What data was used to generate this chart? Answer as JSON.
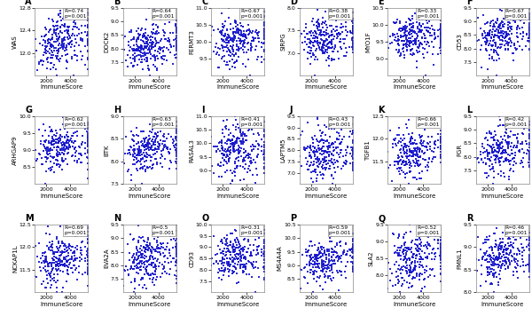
{
  "panels": [
    {
      "label": "A",
      "gene": "WAS",
      "R": "0.74",
      "p": "0.001",
      "ylim": [
        11.6,
        12.8
      ],
      "yticks": [
        12.0,
        12.4,
        12.8
      ]
    },
    {
      "label": "B",
      "gene": "DOCK2",
      "R": "0.64",
      "p": "0.001",
      "ylim": [
        7.0,
        9.5
      ],
      "yticks": [
        7.5,
        8.0,
        8.5,
        9.0,
        9.5
      ]
    },
    {
      "label": "C",
      "gene": "FERMT3",
      "R": "0.67",
      "p": "0.001",
      "ylim": [
        9.0,
        11.0
      ],
      "yticks": [
        9.5,
        10.0,
        10.5,
        11.0
      ]
    },
    {
      "label": "D",
      "gene": "SIRPG",
      "R": "0.38",
      "p": "0.001",
      "ylim": [
        6.5,
        8.0
      ],
      "yticks": [
        7.0,
        7.5,
        8.0
      ]
    },
    {
      "label": "E",
      "gene": "MYO1F",
      "R": "0.33",
      "p": "0.001",
      "ylim": [
        8.5,
        10.5
      ],
      "yticks": [
        9.0,
        9.5,
        10.0,
        10.5
      ]
    },
    {
      "label": "F",
      "gene": "CD53",
      "R": "0.67",
      "p": "0.001",
      "ylim": [
        7.0,
        9.5
      ],
      "yticks": [
        7.5,
        8.0,
        8.5,
        9.0,
        9.5
      ]
    },
    {
      "label": "G",
      "gene": "ARHGAP9",
      "R": "0.62",
      "p": "0.001",
      "ylim": [
        8.0,
        10.0
      ],
      "yticks": [
        8.5,
        9.0,
        9.5,
        10.0
      ]
    },
    {
      "label": "H",
      "gene": "BTK",
      "R": "0.63",
      "p": "0.001",
      "ylim": [
        7.5,
        9.0
      ],
      "yticks": [
        7.5,
        8.0,
        8.5,
        9.0
      ]
    },
    {
      "label": "I",
      "gene": "RASAL3",
      "R": "0.41",
      "p": "0.001",
      "ylim": [
        8.5,
        11.0
      ],
      "yticks": [
        9.0,
        9.5,
        10.0,
        10.5,
        11.0
      ]
    },
    {
      "label": "J",
      "gene": "LAPTM5",
      "R": "0.43",
      "p": "0.001",
      "ylim": [
        6.5,
        9.5
      ],
      "yticks": [
        7.0,
        7.5,
        8.0,
        8.5,
        9.0,
        9.5
      ]
    },
    {
      "label": "K",
      "gene": "TGFB1",
      "R": "0.66",
      "p": "0.001",
      "ylim": [
        11.0,
        12.5
      ],
      "yticks": [
        11.5,
        12.0,
        12.5
      ]
    },
    {
      "label": "L",
      "gene": "FGR",
      "R": "0.42",
      "p": "0.001",
      "ylim": [
        7.0,
        9.5
      ],
      "yticks": [
        7.5,
        8.0,
        8.5,
        9.0,
        9.5
      ]
    },
    {
      "label": "M",
      "gene": "NCKAP1L",
      "R": "0.69",
      "p": "0.001",
      "ylim": [
        11.0,
        12.5
      ],
      "yticks": [
        11.5,
        12.0,
        12.5
      ]
    },
    {
      "label": "N",
      "gene": "EVA2A",
      "R": "0.5",
      "p": "0.001",
      "ylim": [
        7.0,
        9.5
      ],
      "yticks": [
        7.5,
        8.0,
        8.5,
        9.0,
        9.5
      ]
    },
    {
      "label": "O",
      "gene": "CD93",
      "R": "0.31",
      "p": "0.001",
      "ylim": [
        7.0,
        10.0
      ],
      "yticks": [
        7.5,
        8.0,
        8.5,
        9.0,
        9.5,
        10.0
      ]
    },
    {
      "label": "P",
      "gene": "MS4A4A",
      "R": "0.59",
      "p": "0.001",
      "ylim": [
        8.0,
        10.5
      ],
      "yticks": [
        8.5,
        9.0,
        9.5,
        10.0,
        10.5
      ]
    },
    {
      "label": "Q",
      "gene": "SLA2",
      "R": "0.52",
      "p": "0.001",
      "ylim": [
        7.5,
        9.5
      ],
      "yticks": [
        8.0,
        8.5,
        9.0,
        9.5
      ]
    },
    {
      "label": "R",
      "gene": "FMNL1",
      "R": "0.46",
      "p": "0.001",
      "ylim": [
        8.0,
        9.5
      ],
      "yticks": [
        8.0,
        8.5,
        9.0,
        9.5
      ]
    }
  ],
  "xlim": [
    1000,
    5500
  ],
  "xticks": [
    2000,
    4000
  ],
  "xlabel": "ImmuneScore",
  "n_points": 280,
  "dot_color": "#1414CC",
  "dot_size": 2.5,
  "bg_color": "#ffffff",
  "panel_label_fontsize": 7,
  "axis_label_fontsize": 5,
  "tick_fontsize": 4.5,
  "annot_fontsize": 4.2
}
